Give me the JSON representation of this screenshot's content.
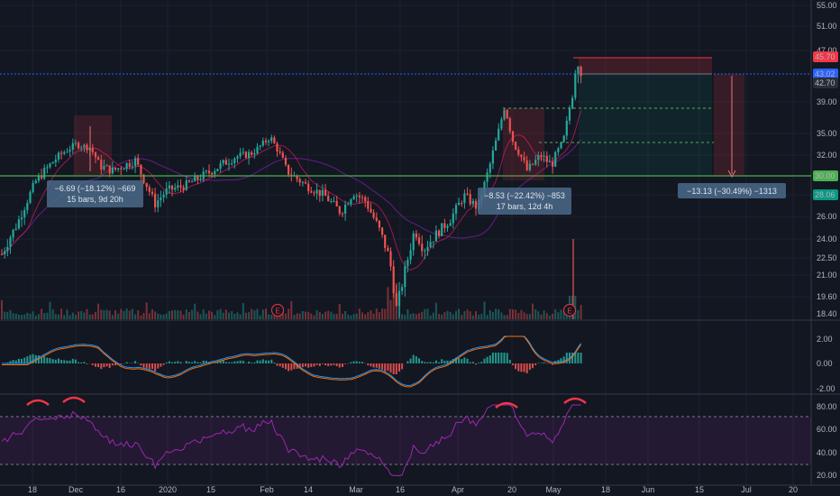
{
  "chart_data": {
    "type": "candlestick",
    "price_axis": {
      "ticks": [
        "55.00",
        "51.00",
        "47.00",
        "45.70",
        "43.02",
        "42.70",
        "39.00",
        "35.00",
        "32.00",
        "30.00",
        "28.06",
        "26.00",
        "24.00",
        "22.50",
        "21.00",
        "19.60",
        "18.40"
      ],
      "tagged": [
        {
          "value": "45.70",
          "color": "#f23645"
        },
        {
          "value": "43.02",
          "color": "#2962ff"
        },
        {
          "value": "42.70",
          "color": "#2a2e39"
        },
        {
          "value": "30.00",
          "color": "#4caf50"
        },
        {
          "value": "28.06",
          "color": "#089981"
        }
      ]
    },
    "macd_axis": {
      "ticks": [
        "2.00",
        "0.00",
        "-2.00"
      ]
    },
    "rsi_axis": {
      "ticks": [
        "80.00",
        "60.00",
        "40.00",
        "20.00"
      ],
      "band": [
        30,
        70
      ]
    },
    "time_axis": [
      "18",
      "Dec",
      "16",
      "2020",
      "15",
      "Feb",
      "14",
      "Mar",
      "16",
      "Apr",
      "20",
      "May",
      "18",
      "Jun",
      "15",
      "Jul",
      "20"
    ],
    "measurements": [
      {
        "line1": "−6.69 (−18.12%) −669",
        "line2": "15 bars, 9d 20h"
      },
      {
        "line1": "−8.53 (−22.42%) −853",
        "line2": "17 bars, 12d 4h"
      },
      {
        "line1": "−13.13 (−30.49%) −1313",
        "line2": ""
      }
    ],
    "earnings_marker": "E",
    "horizontal_level": 30.0,
    "short_position": {
      "entry": 43.02,
      "stop": 45.7,
      "target": 30.0
    },
    "colors": {
      "up": "#26a69a",
      "down": "#ef5350",
      "background": "#131722",
      "rsi": "#9c27b0",
      "macd": "#2196f3",
      "signal": "#ff6d00",
      "level": "#4caf50"
    }
  }
}
